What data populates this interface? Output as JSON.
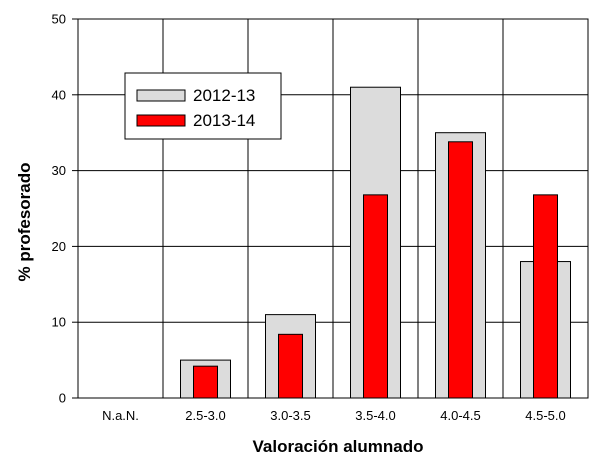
{
  "chart_data": {
    "type": "bar",
    "xlabel": "Valoración alumnado",
    "ylabel": "% profesorado",
    "ylim": [
      0,
      50
    ],
    "yticks": [
      0,
      10,
      20,
      30,
      40,
      50
    ],
    "categories": [
      "N.a.N.",
      "2.5-3.0",
      "3.0-3.5",
      "3.5-4.0",
      "4.0-4.5",
      "4.5-5.0"
    ],
    "series": [
      {
        "name": "2012-13",
        "values": [
          0,
          5,
          11,
          41,
          35,
          18
        ],
        "color": "#dcdcdc"
      },
      {
        "name": "2013-14",
        "values": [
          0,
          4.2,
          8.4,
          26.8,
          33.8,
          26.8
        ],
        "color": "#ff0000"
      }
    ],
    "legend_position": "top-left",
    "grid": true
  }
}
